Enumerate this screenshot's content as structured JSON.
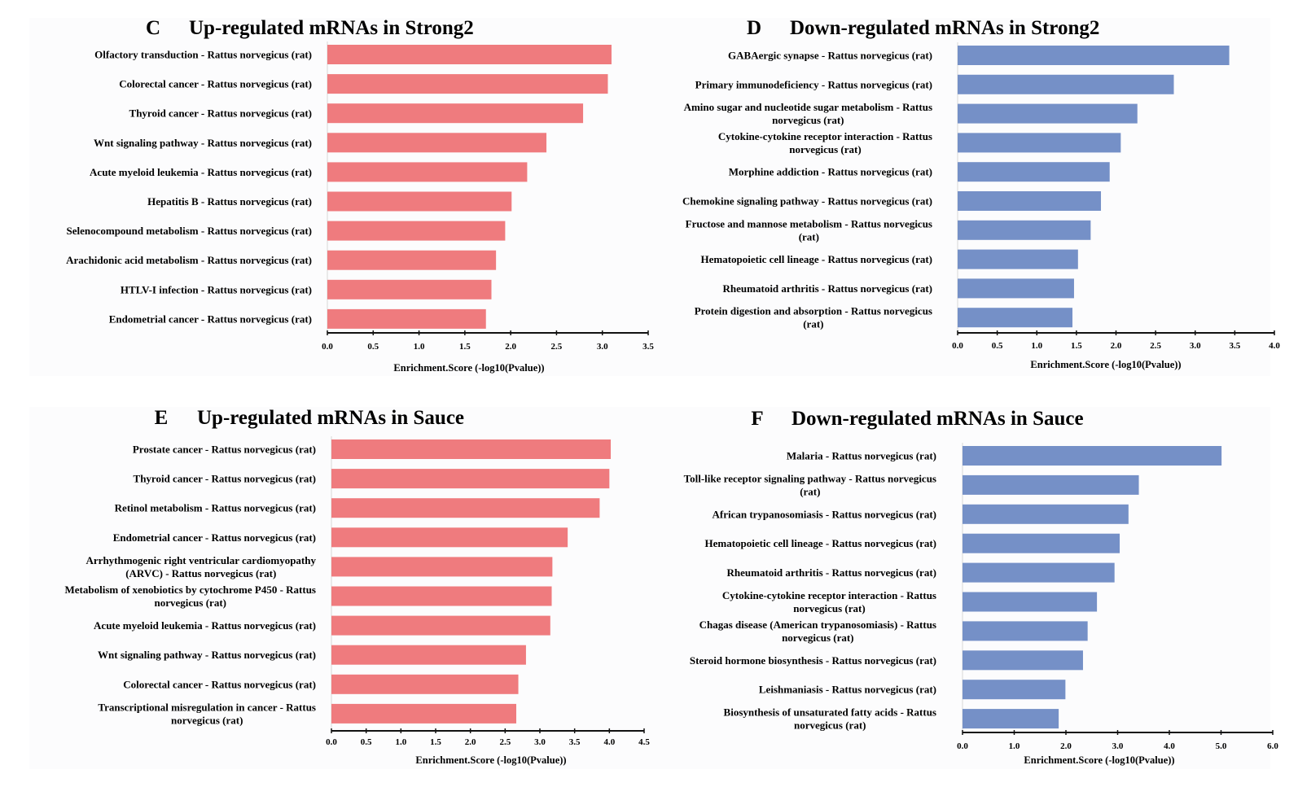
{
  "chart_data": [
    {
      "panel": "C",
      "type": "bar",
      "orientation": "horizontal",
      "title": "Up-regulated mRNAs in Strong2",
      "xlabel": "Enrichment.Score  (-log10(Pvalue))",
      "ylabel": "",
      "xlim": [
        0,
        3.5
      ],
      "xticks": [
        "0.0",
        "0.5",
        "1.0",
        "1.5",
        "2.0",
        "2.5",
        "3.0",
        "3.5"
      ],
      "color": "#ef7b7e",
      "grid": false,
      "categories": [
        [
          "Olfactory transduction - Rattus norvegicus (rat)"
        ],
        [
          "Colorectal cancer - Rattus norvegicus (rat)"
        ],
        [
          "Thyroid cancer - Rattus norvegicus (rat)"
        ],
        [
          "Wnt signaling pathway - Rattus norvegicus (rat)"
        ],
        [
          "Acute myeloid leukemia - Rattus norvegicus (rat)"
        ],
        [
          "Hepatitis B - Rattus norvegicus (rat)"
        ],
        [
          "Selenocompound metabolism - Rattus norvegicus (rat)"
        ],
        [
          "Arachidonic acid metabolism - Rattus norvegicus (rat)"
        ],
        [
          "HTLV-I infection - Rattus norvegicus (rat)"
        ],
        [
          "Endometrial cancer - Rattus norvegicus (rat)"
        ]
      ],
      "values": [
        3.1,
        3.06,
        2.79,
        2.39,
        2.18,
        2.01,
        1.94,
        1.84,
        1.79,
        1.73
      ]
    },
    {
      "panel": "D",
      "type": "bar",
      "orientation": "horizontal",
      "title": "Down-regulated mRNAs in Strong2",
      "xlabel": "Enrichment.Score  (-log10(Pvalue))",
      "ylabel": "",
      "xlim": [
        0,
        4.0
      ],
      "xticks": [
        "0.0",
        "0.5",
        "1.0",
        "1.5",
        "2.0",
        "2.5",
        "3.0",
        "3.5",
        "4.0"
      ],
      "color": "#7590c7",
      "grid": false,
      "categories": [
        [
          "GABAergic synapse - Rattus norvegicus (rat)"
        ],
        [
          "Primary immunodeficiency - Rattus norvegicus (rat)"
        ],
        [
          "Amino sugar and nucleotide sugar metabolism - Rattus",
          "norvegicus (rat)"
        ],
        [
          "Cytokine-cytokine receptor interaction - Rattus",
          "norvegicus (rat)"
        ],
        [
          "Morphine addiction - Rattus norvegicus (rat)"
        ],
        [
          "Chemokine signaling pathway - Rattus norvegicus (rat)"
        ],
        [
          "Fructose and mannose metabolism - Rattus norvegicus",
          "(rat)"
        ],
        [
          "Hematopoietic cell lineage - Rattus norvegicus (rat)"
        ],
        [
          "Rheumatoid arthritis - Rattus norvegicus (rat)"
        ],
        [
          "Protein digestion and absorption - Rattus norvegicus",
          "(rat)"
        ]
      ],
      "values": [
        3.43,
        2.73,
        2.27,
        2.06,
        1.92,
        1.81,
        1.68,
        1.52,
        1.47,
        1.45
      ]
    },
    {
      "panel": "E",
      "type": "bar",
      "orientation": "horizontal",
      "title": "Up-regulated mRNAs in Sauce",
      "xlabel": "Enrichment.Score  (-log10(Pvalue))",
      "ylabel": "",
      "xlim": [
        0,
        4.5
      ],
      "xticks": [
        "0.0",
        "0.5",
        "1.0",
        "1.5",
        "2.0",
        "2.5",
        "3.0",
        "3.5",
        "4.0",
        "4.5"
      ],
      "color": "#ef7b7e",
      "grid": false,
      "categories": [
        [
          "Prostate cancer - Rattus norvegicus (rat)"
        ],
        [
          "Thyroid cancer - Rattus norvegicus (rat)"
        ],
        [
          "Retinol metabolism - Rattus norvegicus (rat)"
        ],
        [
          "Endometrial cancer - Rattus norvegicus (rat)"
        ],
        [
          "Arrhythmogenic right ventricular cardiomyopathy",
          "(ARVC) - Rattus norvegicus (rat)"
        ],
        [
          "Metabolism of xenobiotics by cytochrome P450 - Rattus",
          "norvegicus (rat)"
        ],
        [
          "Acute myeloid leukemia - Rattus norvegicus (rat)"
        ],
        [
          "Wnt signaling pathway - Rattus norvegicus (rat)"
        ],
        [
          "Colorectal cancer - Rattus norvegicus (rat)"
        ],
        [
          "Transcriptional misregulation in cancer - Rattus",
          "norvegicus (rat)"
        ]
      ],
      "values": [
        4.02,
        4.0,
        3.86,
        3.4,
        3.18,
        3.17,
        3.15,
        2.8,
        2.69,
        2.66
      ]
    },
    {
      "panel": "F",
      "type": "bar",
      "orientation": "horizontal",
      "title": "Down-regulated mRNAs in Sauce",
      "xlabel": "Enrichment.Score  (-log10(Pvalue))",
      "ylabel": "",
      "xlim": [
        0,
        6.0
      ],
      "xticks": [
        "0.0",
        "1.0",
        "2.0",
        "3.0",
        "4.0",
        "5.0",
        "6.0"
      ],
      "color": "#7590c7",
      "grid": false,
      "categories": [
        [
          "Malaria - Rattus norvegicus (rat)"
        ],
        [
          "Toll-like receptor signaling pathway - Rattus norvegicus",
          "(rat)"
        ],
        [
          "African trypanosomiasis - Rattus norvegicus (rat)"
        ],
        [
          "Hematopoietic cell lineage - Rattus norvegicus (rat)"
        ],
        [
          "Rheumatoid arthritis - Rattus norvegicus (rat)"
        ],
        [
          "Cytokine-cytokine receptor interaction - Rattus",
          "norvegicus (rat)"
        ],
        [
          "Chagas disease (American trypanosomiasis) - Rattus",
          "norvegicus (rat)"
        ],
        [
          "Steroid hormone biosynthesis - Rattus norvegicus (rat)"
        ],
        [
          "Leishmaniasis - Rattus norvegicus (rat)"
        ],
        [
          "Biosynthesis of unsaturated fatty acids - Rattus",
          "norvegicus (rat)"
        ]
      ],
      "values": [
        5.01,
        3.41,
        3.21,
        3.04,
        2.94,
        2.6,
        2.42,
        2.33,
        1.99,
        1.86
      ]
    }
  ]
}
